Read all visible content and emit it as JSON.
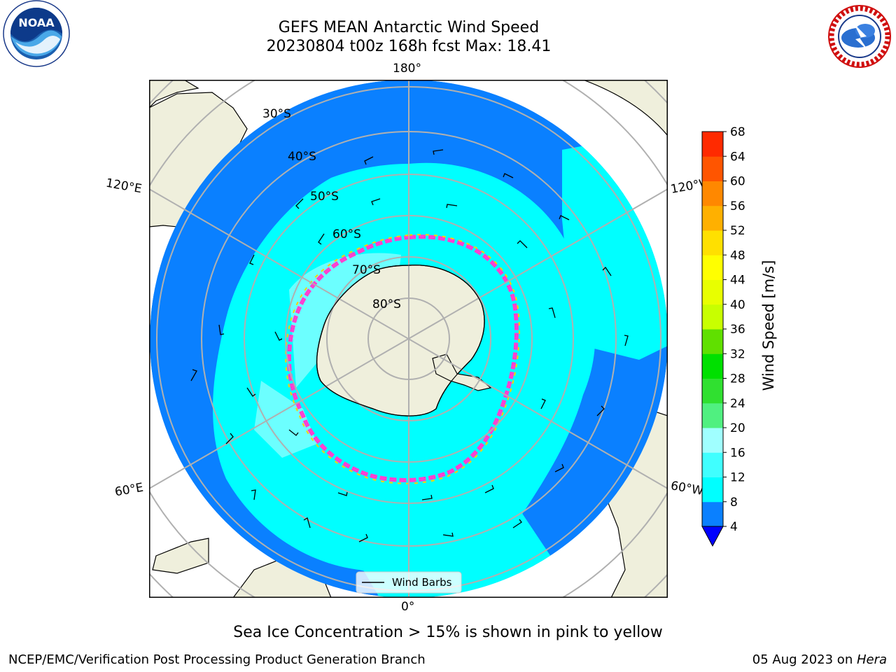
{
  "header": {
    "title": "GEFS MEAN Antarctic Wind Speed",
    "subtitle": "20230804 t00z 168h fcst   Max: 18.41"
  },
  "logos": {
    "left": "noaa-logo",
    "right": "nws-logo"
  },
  "map": {
    "lon_labels": {
      "top": "180°",
      "left_upper": "120°E",
      "right_upper": "120°W",
      "left_lower": "60°E",
      "right_lower": "60°W",
      "bottom": "0°"
    },
    "lat_labels": [
      "30°S",
      "40°S",
      "50°S",
      "60°S",
      "70°S",
      "80°S"
    ],
    "legend_label": "Wind Barbs",
    "colors": {
      "ocean_deep": "#0a80ff",
      "ocean_mid": "#00ffff",
      "ocean_light": "#7fffff",
      "land": "#efefdc",
      "ice_pink": "#ff40d0",
      "ice_yellow": "#ffd000",
      "grid": "#b0b0b0"
    }
  },
  "colorbar": {
    "label": "Wind Speed [m/s]",
    "ticks": [
      "4",
      "8",
      "12",
      "16",
      "20",
      "24",
      "28",
      "32",
      "36",
      "40",
      "44",
      "48",
      "52",
      "56",
      "60",
      "64",
      "68"
    ],
    "colors": [
      "#0a80ff",
      "#00ffff",
      "#40ffff",
      "#a0ffff",
      "#50f080",
      "#30e030",
      "#00e000",
      "#60e000",
      "#c8ff00",
      "#e8ff00",
      "#ffff00",
      "#ffe000",
      "#ffb000",
      "#ff8800",
      "#ff5500",
      "#ff2a00",
      "#ff0000"
    ],
    "extend_color": "#0000ff"
  },
  "footer": {
    "note": "Sea Ice Concentration > 15% is shown in pink to yellow",
    "left": "NCEP/EMC/Verification Post Processing Product Generation Branch",
    "right_date": "05 Aug 2023 on ",
    "right_host": "Hera"
  }
}
